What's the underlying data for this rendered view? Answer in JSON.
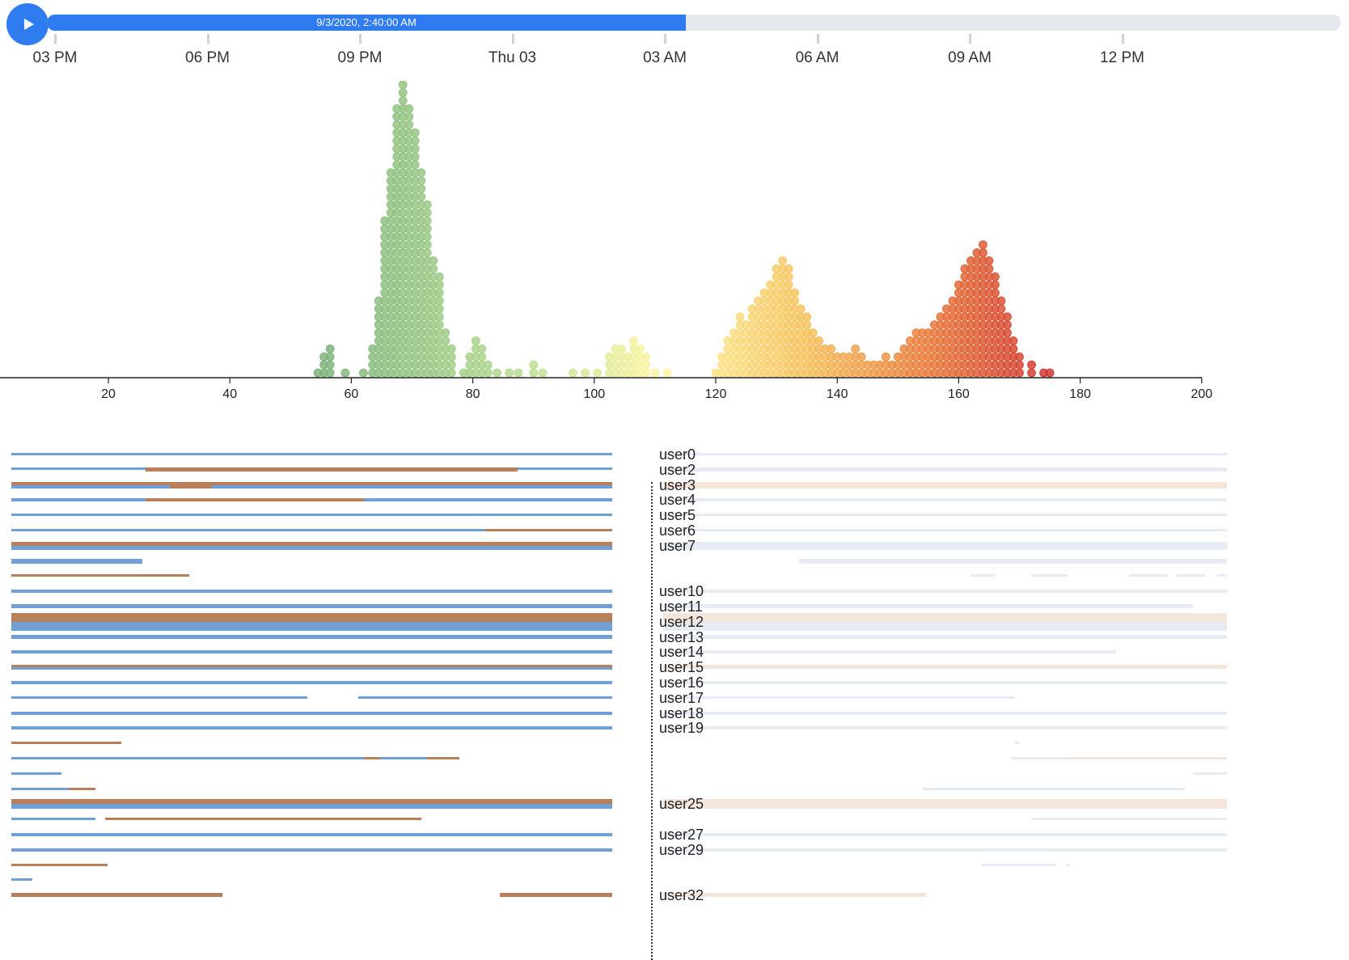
{
  "player": {
    "play_icon": "play-icon",
    "current_time": "9/3/2020, 2:40:00 AM",
    "progress": 0.4935,
    "time_ticks": [
      "03 PM",
      "06 PM",
      "09 PM",
      "Thu 03",
      "03 AM",
      "06 AM",
      "09 AM",
      "12 PM"
    ]
  },
  "colors": {
    "accent": "#2f7cf0",
    "track": "#e5e9ef",
    "bar_blue": "#6f9fd4",
    "bar_orange": "#b8805a",
    "ghost_blue": "#e7ecf4",
    "ghost_orange": "#f5e6dc"
  },
  "chart_data": {
    "type": "scatter",
    "subtype": "beeswarm",
    "xlim": [
      0,
      200
    ],
    "x_ticks": [
      20,
      40,
      60,
      80,
      100,
      120,
      140,
      160,
      180,
      200
    ],
    "color_scale": "green-yellow-orange-red by x",
    "columns": [
      [
        54.5,
        1
      ],
      [
        55.5,
        3
      ],
      [
        56.5,
        4
      ],
      [
        59,
        1
      ],
      [
        62,
        1
      ],
      [
        63.5,
        4
      ],
      [
        64.5,
        10
      ],
      [
        65.5,
        20
      ],
      [
        66.5,
        26
      ],
      [
        67.5,
        34
      ],
      [
        68.5,
        38
      ],
      [
        69.5,
        34
      ],
      [
        70.5,
        31
      ],
      [
        71.5,
        26
      ],
      [
        72.5,
        22
      ],
      [
        73.5,
        15
      ],
      [
        74.5,
        13
      ],
      [
        75.5,
        6
      ],
      [
        76.5,
        4
      ],
      [
        78.5,
        1
      ],
      [
        79.5,
        3
      ],
      [
        80.5,
        5
      ],
      [
        81.5,
        4
      ],
      [
        82.5,
        2
      ],
      [
        84,
        1
      ],
      [
        86,
        1
      ],
      [
        87.5,
        1
      ],
      [
        90,
        2
      ],
      [
        91.5,
        1
      ],
      [
        96.5,
        1
      ],
      [
        98.5,
        1
      ],
      [
        100.5,
        1
      ],
      [
        102.5,
        3
      ],
      [
        103.5,
        4
      ],
      [
        104.5,
        4
      ],
      [
        105.5,
        3
      ],
      [
        106.5,
        5
      ],
      [
        107.5,
        4
      ],
      [
        108.5,
        3
      ],
      [
        110,
        1
      ],
      [
        112,
        1
      ],
      [
        120,
        1
      ],
      [
        121,
        3
      ],
      [
        122,
        5
      ],
      [
        123,
        6
      ],
      [
        124,
        8
      ],
      [
        125,
        7
      ],
      [
        126,
        9
      ],
      [
        127,
        10
      ],
      [
        128,
        11
      ],
      [
        129,
        12
      ],
      [
        130,
        14
      ],
      [
        131,
        15
      ],
      [
        132,
        14
      ],
      [
        133,
        11
      ],
      [
        134,
        9
      ],
      [
        135,
        8
      ],
      [
        136,
        6
      ],
      [
        137,
        5
      ],
      [
        138,
        4
      ],
      [
        139,
        4
      ],
      [
        140,
        3
      ],
      [
        141,
        3
      ],
      [
        142,
        3
      ],
      [
        143,
        4
      ],
      [
        144,
        3
      ],
      [
        145,
        2
      ],
      [
        146,
        2
      ],
      [
        147,
        2
      ],
      [
        148,
        3
      ],
      [
        149,
        2
      ],
      [
        150,
        3
      ],
      [
        151,
        4
      ],
      [
        152,
        5
      ],
      [
        153,
        6
      ],
      [
        154,
        6
      ],
      [
        155,
        6
      ],
      [
        156,
        7
      ],
      [
        157,
        8
      ],
      [
        158,
        9
      ],
      [
        159,
        10
      ],
      [
        160,
        12
      ],
      [
        161,
        14
      ],
      [
        162,
        15
      ],
      [
        163,
        16
      ],
      [
        164,
        17
      ],
      [
        165,
        15
      ],
      [
        166,
        13
      ],
      [
        167,
        10
      ],
      [
        168,
        8
      ],
      [
        169,
        5
      ],
      [
        170,
        3
      ],
      [
        172,
        2
      ],
      [
        174,
        1
      ],
      [
        175,
        1
      ]
    ]
  },
  "users": [
    {
      "label": "user0",
      "lw": 3,
      "segs": [
        [
          14,
          757,
          "b"
        ]
      ],
      "ghost": [
        [
          820,
          1517,
          "b"
        ]
      ]
    },
    {
      "label": "user2",
      "lw": 5,
      "segs": [
        [
          14,
          757,
          "b"
        ],
        [
          180,
          640,
          "o"
        ]
      ],
      "ghost": [
        [
          820,
          1517,
          "b"
        ]
      ]
    },
    {
      "label": "user3",
      "lw": 8,
      "segs": [
        [
          14,
          757,
          "o"
        ],
        [
          14,
          757,
          "b"
        ],
        [
          210,
          262,
          "o"
        ]
      ],
      "ghost": [
        [
          820,
          1517,
          "o"
        ]
      ]
    },
    {
      "label": "user4",
      "lw": 4,
      "segs": [
        [
          14,
          757,
          "b"
        ],
        [
          180,
          450,
          "o"
        ]
      ],
      "ghost": [
        [
          820,
          1517,
          "b"
        ]
      ]
    },
    {
      "label": "user5",
      "lw": 3,
      "segs": [
        [
          14,
          757,
          "b"
        ]
      ],
      "ghost": [
        [
          820,
          1517,
          "b"
        ]
      ]
    },
    {
      "label": "user6",
      "lw": 3,
      "segs": [
        [
          14,
          757,
          "b"
        ],
        [
          600,
          757,
          "o"
        ]
      ],
      "ghost": [
        [
          820,
          1517,
          "b"
        ]
      ]
    },
    {
      "label": "user7",
      "lw": 10,
      "segs": [
        [
          14,
          757,
          "o"
        ],
        [
          14,
          757,
          "b"
        ]
      ],
      "ghost": [
        [
          820,
          1517,
          "b"
        ]
      ]
    },
    {
      "label": "",
      "lw": 6,
      "segs": [
        [
          14,
          176,
          "b"
        ]
      ],
      "ghost": [
        [
          988,
          1517,
          "b"
        ]
      ]
    },
    {
      "label": "",
      "lw": 3,
      "segs": [
        [
          14,
          234,
          "o"
        ]
      ],
      "ghost": [
        [
          1200,
          1230,
          "b"
        ],
        [
          1275,
          1320,
          "b"
        ],
        [
          1396,
          1445,
          "b"
        ],
        [
          1455,
          1490,
          "b"
        ],
        [
          1505,
          1517,
          "b"
        ]
      ]
    },
    {
      "label": "user10",
      "lw": 4,
      "segs": [
        [
          14,
          757,
          "b"
        ]
      ],
      "ghost": [
        [
          820,
          1517,
          "b"
        ]
      ]
    },
    {
      "label": "user11",
      "lw": 5,
      "segs": [
        [
          14,
          757,
          "b"
        ]
      ],
      "ghost": [
        [
          820,
          1475,
          "b"
        ]
      ]
    },
    {
      "label": "user12",
      "lw": 22,
      "segs": [
        [
          14,
          757,
          "o"
        ],
        [
          14,
          757,
          "b"
        ]
      ],
      "ghost": [
        [
          820,
          1517,
          "o"
        ],
        [
          820,
          1517,
          "b"
        ]
      ]
    },
    {
      "label": "user13",
      "lw": 5,
      "segs": [
        [
          14,
          757,
          "b"
        ]
      ],
      "ghost": [
        [
          820,
          1517,
          "b"
        ]
      ]
    },
    {
      "label": "user14",
      "lw": 4,
      "segs": [
        [
          14,
          757,
          "b"
        ]
      ],
      "ghost": [
        [
          820,
          1380,
          "b"
        ]
      ]
    },
    {
      "label": "user15",
      "lw": 5,
      "segs": [
        [
          14,
          757,
          "o"
        ],
        [
          14,
          757,
          "b"
        ]
      ],
      "ghost": [
        [
          820,
          1517,
          "o"
        ]
      ]
    },
    {
      "label": "user16",
      "lw": 4,
      "segs": [
        [
          14,
          757,
          "b"
        ]
      ],
      "ghost": [
        [
          820,
          1517,
          "b"
        ]
      ]
    },
    {
      "label": "user17",
      "lw": 3,
      "segs": [
        [
          14,
          380,
          "b"
        ],
        [
          443,
          757,
          "b"
        ]
      ],
      "ghost": [
        [
          820,
          1255,
          "b"
        ]
      ]
    },
    {
      "label": "user18",
      "lw": 4,
      "segs": [
        [
          14,
          757,
          "b"
        ]
      ],
      "ghost": [
        [
          820,
          1517,
          "b"
        ]
      ]
    },
    {
      "label": "user19",
      "lw": 4,
      "segs": [
        [
          14,
          757,
          "b"
        ]
      ],
      "ghost": [
        [
          820,
          1517,
          "b"
        ]
      ]
    },
    {
      "label": "",
      "lw": 3,
      "segs": [
        [
          14,
          150,
          "o"
        ]
      ],
      "ghost": [
        [
          1255,
          1260,
          "b"
        ]
      ]
    },
    {
      "label": "",
      "lw": 3,
      "segs": [
        [
          14,
          568,
          "b"
        ],
        [
          450,
          470,
          "o"
        ],
        [
          528,
          568,
          "o"
        ]
      ],
      "ghost": [
        [
          1250,
          1517,
          "b"
        ],
        [
          1318,
          1517,
          "o"
        ]
      ]
    },
    {
      "label": "",
      "lw": 3,
      "segs": [
        [
          14,
          76,
          "b"
        ]
      ],
      "ghost": [
        [
          1475,
          1517,
          "b"
        ]
      ]
    },
    {
      "label": "",
      "lw": 3,
      "segs": [
        [
          14,
          118,
          "b"
        ],
        [
          85,
          118,
          "o"
        ]
      ],
      "ghost": [
        [
          1140,
          1465,
          "b"
        ]
      ]
    },
    {
      "label": "user25",
      "lw": 12,
      "segs": [
        [
          14,
          757,
          "o"
        ],
        [
          14,
          757,
          "b"
        ]
      ],
      "ghost": [
        [
          820,
          1517,
          "o"
        ]
      ]
    },
    {
      "label": "",
      "lw": 3,
      "segs": [
        [
          14,
          118,
          "b"
        ],
        [
          130,
          521,
          "o"
        ]
      ],
      "ghost": [
        [
          1275,
          1517,
          "b"
        ]
      ]
    },
    {
      "label": "user27",
      "lw": 4,
      "segs": [
        [
          14,
          757,
          "b"
        ]
      ],
      "ghost": [
        [
          820,
          1517,
          "b"
        ]
      ]
    },
    {
      "label": "user29",
      "lw": 4,
      "segs": [
        [
          14,
          757,
          "b"
        ]
      ],
      "ghost": [
        [
          820,
          1517,
          "b"
        ]
      ]
    },
    {
      "label": "",
      "lw": 3,
      "segs": [
        [
          14,
          133,
          "o"
        ]
      ],
      "ghost": [
        [
          1213,
          1306,
          "b"
        ],
        [
          1318,
          1323,
          "b"
        ]
      ]
    },
    {
      "label": "",
      "lw": 3,
      "segs": [
        [
          14,
          40,
          "b"
        ]
      ],
      "ghost": []
    },
    {
      "label": "user32",
      "lw": 5,
      "segs": [
        [
          14,
          275,
          "o"
        ],
        [
          618,
          757,
          "o"
        ]
      ],
      "ghost": [
        [
          820,
          1145,
          "o"
        ]
      ]
    }
  ]
}
